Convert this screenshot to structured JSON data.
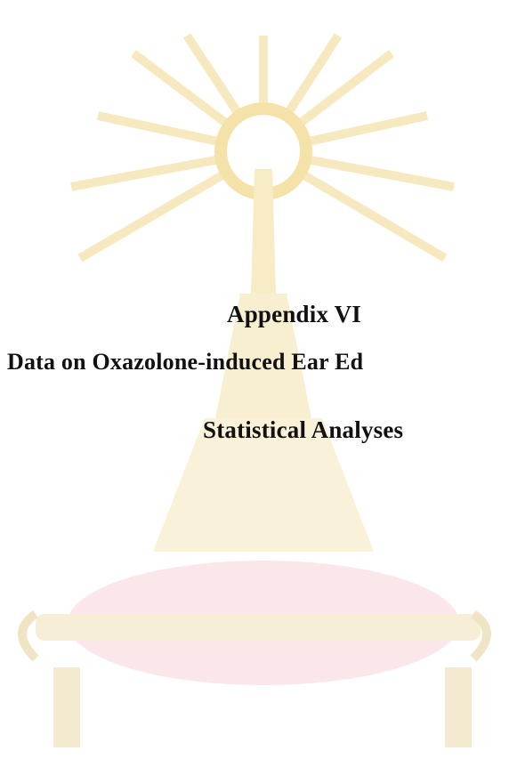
{
  "document": {
    "heading": "Appendix VI",
    "title_line": "Data on Oxazolone-induced Ear Ed",
    "subtitle": "Statistical Analyses"
  }
}
